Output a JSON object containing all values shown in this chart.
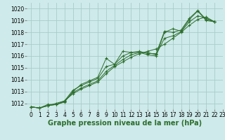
{
  "title": "Graphe pression niveau de la mer (hPa)",
  "bg_color": "#ceeaea",
  "grid_color": "#aacccc",
  "line_color": "#2d6e2d",
  "xlim": [
    -0.5,
    23
  ],
  "ylim": [
    1011.5,
    1020.5
  ],
  "xticks": [
    0,
    1,
    2,
    3,
    4,
    5,
    6,
    7,
    8,
    9,
    10,
    11,
    12,
    13,
    14,
    15,
    16,
    17,
    18,
    19,
    20,
    21,
    22,
    23
  ],
  "yticks": [
    1012,
    1013,
    1014,
    1015,
    1016,
    1017,
    1018,
    1019,
    1020
  ],
  "series": [
    [
      0,
      1011.7,
      1,
      1011.6,
      2,
      1011.8,
      3,
      1011.9,
      4,
      1012.1,
      5,
      1013.0,
      6,
      1013.6,
      7,
      1013.9,
      8,
      1014.2,
      9,
      1015.8,
      10,
      1015.3,
      11,
      1016.4,
      12,
      1016.3,
      13,
      1016.3,
      14,
      1016.1,
      15,
      1016.0,
      16,
      1018.0,
      17,
      1018.3,
      18,
      1018.1,
      19,
      1019.1,
      20,
      1019.8,
      21,
      1019.0,
      22,
      1018.9
    ],
    [
      0,
      1011.7,
      1,
      1011.6,
      2,
      1011.8,
      3,
      1012.0,
      4,
      1012.2,
      5,
      1012.8,
      6,
      1013.2,
      7,
      1013.5,
      8,
      1013.8,
      9,
      1014.5,
      10,
      1015.1,
      11,
      1015.5,
      12,
      1015.9,
      13,
      1016.2,
      14,
      1016.4,
      15,
      1016.6,
      16,
      1017.0,
      17,
      1017.5,
      18,
      1018.0,
      19,
      1018.6,
      20,
      1019.1,
      21,
      1019.3,
      22,
      1018.9
    ],
    [
      0,
      1011.7,
      1,
      1011.6,
      2,
      1011.8,
      3,
      1011.9,
      4,
      1012.2,
      5,
      1013.1,
      6,
      1013.5,
      7,
      1013.8,
      8,
      1014.1,
      9,
      1015.1,
      10,
      1015.3,
      11,
      1016.0,
      12,
      1016.3,
      13,
      1016.4,
      14,
      1016.2,
      15,
      1016.2,
      16,
      1018.1,
      17,
      1018.0,
      18,
      1018.2,
      19,
      1019.2,
      20,
      1019.85,
      21,
      1019.1,
      22,
      1018.9
    ],
    [
      0,
      1011.7,
      1,
      1011.6,
      2,
      1011.9,
      3,
      1011.9,
      4,
      1012.15,
      5,
      1012.9,
      6,
      1013.3,
      7,
      1013.6,
      8,
      1013.9,
      9,
      1014.7,
      10,
      1015.2,
      11,
      1015.7,
      12,
      1016.1,
      13,
      1016.3,
      14,
      1016.3,
      15,
      1016.1,
      16,
      1017.5,
      17,
      1017.7,
      18,
      1018.05,
      19,
      1018.9,
      20,
      1019.4,
      21,
      1019.2,
      22,
      1018.9
    ]
  ],
  "tick_fontsize": 5.5,
  "xlabel_fontsize": 7.0
}
